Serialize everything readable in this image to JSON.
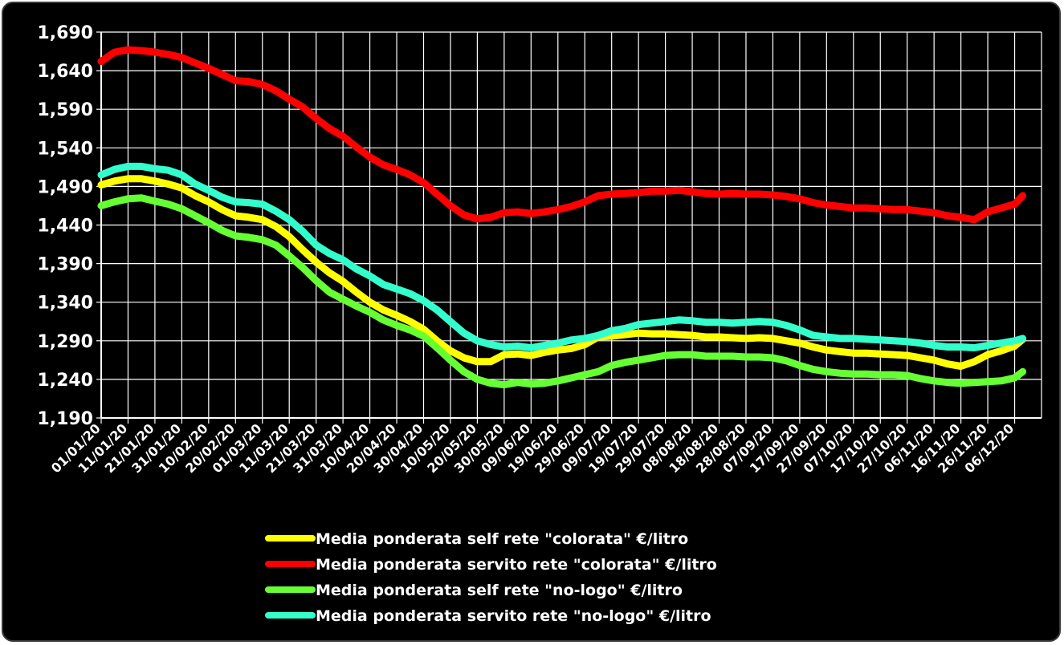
{
  "chart_data": {
    "type": "line",
    "title": "",
    "xlabel": "",
    "ylabel": "",
    "ylim": [
      1.19,
      1.69
    ],
    "yticks": [
      "1,190",
      "1,240",
      "1,290",
      "1,340",
      "1,390",
      "1,440",
      "1,490",
      "1,540",
      "1,590",
      "1,640",
      "1,690"
    ],
    "ytick_values": [
      1.19,
      1.24,
      1.29,
      1.34,
      1.39,
      1.44,
      1.49,
      1.54,
      1.59,
      1.64,
      1.69
    ],
    "xticks": [
      "01/01/20",
      "11/01/20",
      "21/01/20",
      "31/01/20",
      "10/02/20",
      "20/02/20",
      "01/03/20",
      "11/03/20",
      "21/03/20",
      "31/03/20",
      "10/04/20",
      "20/04/20",
      "30/04/20",
      "10/05/20",
      "20/05/20",
      "30/05/20",
      "09/06/20",
      "19/06/20",
      "29/06/20",
      "09/07/20",
      "19/07/20",
      "29/07/20",
      "08/08/20",
      "18/08/20",
      "28/08/20",
      "07/09/20",
      "17/09/20",
      "27/09/20",
      "07/10/20",
      "17/10/20",
      "27/10/20",
      "06/11/20",
      "16/11/20",
      "26/11/20",
      "06/12/20"
    ],
    "xlim": [
      "01/01/20",
      "16/12/20"
    ],
    "grid": true,
    "legend_position": "bottom",
    "series": [
      {
        "name": "Media ponderata self rete \"colorata\" €/litro",
        "color": "#ffff00",
        "x": [
          "01/01/20",
          "06/01/20",
          "11/01/20",
          "16/01/20",
          "21/01/20",
          "26/01/20",
          "31/01/20",
          "05/02/20",
          "10/02/20",
          "15/02/20",
          "20/02/20",
          "25/02/20",
          "01/03/20",
          "06/03/20",
          "11/03/20",
          "16/03/20",
          "21/03/20",
          "26/03/20",
          "31/03/20",
          "05/04/20",
          "10/04/20",
          "15/04/20",
          "20/04/20",
          "25/04/20",
          "30/04/20",
          "05/05/20",
          "10/05/20",
          "15/05/20",
          "20/05/20",
          "25/05/20",
          "30/05/20",
          "04/06/20",
          "09/06/20",
          "14/06/20",
          "19/06/20",
          "24/06/20",
          "29/06/20",
          "04/07/20",
          "09/07/20",
          "14/07/20",
          "19/07/20",
          "24/07/20",
          "29/07/20",
          "03/08/20",
          "08/08/20",
          "13/08/20",
          "18/08/20",
          "23/08/20",
          "28/08/20",
          "02/09/20",
          "07/09/20",
          "12/09/20",
          "17/09/20",
          "22/09/20",
          "27/09/20",
          "02/10/20",
          "07/10/20",
          "12/10/20",
          "17/10/20",
          "22/10/20",
          "27/10/20",
          "01/11/20",
          "06/11/20",
          "11/11/20",
          "16/11/20",
          "21/11/20",
          "26/11/20",
          "01/12/20",
          "06/12/20",
          "09/12/20"
        ],
        "y": [
          1.492,
          1.497,
          1.5,
          1.5,
          1.497,
          1.493,
          1.488,
          1.478,
          1.47,
          1.46,
          1.452,
          1.45,
          1.447,
          1.438,
          1.425,
          1.408,
          1.392,
          1.378,
          1.367,
          1.353,
          1.34,
          1.33,
          1.323,
          1.315,
          1.305,
          1.29,
          1.277,
          1.268,
          1.263,
          1.263,
          1.272,
          1.273,
          1.271,
          1.275,
          1.278,
          1.28,
          1.285,
          1.295,
          1.296,
          1.298,
          1.3,
          1.299,
          1.299,
          1.298,
          1.297,
          1.295,
          1.295,
          1.294,
          1.293,
          1.294,
          1.293,
          1.29,
          1.287,
          1.282,
          1.278,
          1.276,
          1.274,
          1.274,
          1.273,
          1.272,
          1.271,
          1.268,
          1.265,
          1.26,
          1.257,
          1.263,
          1.272,
          1.277,
          1.283,
          1.292
        ]
      },
      {
        "name": "Media ponderata servito rete \"colorata\" €/litro",
        "color": "#ff0000",
        "x": [
          "01/01/20",
          "06/01/20",
          "11/01/20",
          "16/01/20",
          "21/01/20",
          "26/01/20",
          "31/01/20",
          "05/02/20",
          "10/02/20",
          "15/02/20",
          "20/02/20",
          "25/02/20",
          "01/03/20",
          "06/03/20",
          "11/03/20",
          "16/03/20",
          "21/03/20",
          "26/03/20",
          "31/03/20",
          "05/04/20",
          "10/04/20",
          "15/04/20",
          "20/04/20",
          "25/04/20",
          "30/04/20",
          "05/05/20",
          "10/05/20",
          "15/05/20",
          "20/05/20",
          "25/05/20",
          "30/05/20",
          "04/06/20",
          "09/06/20",
          "14/06/20",
          "19/06/20",
          "24/06/20",
          "29/06/20",
          "04/07/20",
          "09/07/20",
          "14/07/20",
          "19/07/20",
          "24/07/20",
          "29/07/20",
          "03/08/20",
          "08/08/20",
          "13/08/20",
          "18/08/20",
          "23/08/20",
          "28/08/20",
          "02/09/20",
          "07/09/20",
          "12/09/20",
          "17/09/20",
          "22/09/20",
          "27/09/20",
          "02/10/20",
          "07/10/20",
          "12/10/20",
          "17/10/20",
          "22/10/20",
          "27/10/20",
          "01/11/20",
          "06/11/20",
          "11/11/20",
          "16/11/20",
          "21/11/20",
          "26/11/20",
          "01/12/20",
          "06/12/20",
          "09/12/20"
        ],
        "y": [
          1.652,
          1.664,
          1.667,
          1.666,
          1.664,
          1.661,
          1.657,
          1.65,
          1.643,
          1.635,
          1.627,
          1.626,
          1.622,
          1.614,
          1.603,
          1.593,
          1.578,
          1.565,
          1.555,
          1.541,
          1.528,
          1.518,
          1.512,
          1.505,
          1.495,
          1.48,
          1.465,
          1.453,
          1.448,
          1.45,
          1.456,
          1.457,
          1.455,
          1.457,
          1.46,
          1.464,
          1.47,
          1.478,
          1.48,
          1.481,
          1.482,
          1.484,
          1.484,
          1.485,
          1.483,
          1.481,
          1.48,
          1.481,
          1.48,
          1.48,
          1.479,
          1.477,
          1.474,
          1.469,
          1.466,
          1.464,
          1.462,
          1.462,
          1.461,
          1.46,
          1.46,
          1.458,
          1.456,
          1.452,
          1.45,
          1.447,
          1.457,
          1.462,
          1.467,
          1.478
        ]
      },
      {
        "name": "Media ponderata self rete \"no-logo\" €/litro",
        "color": "#66ff33",
        "x": [
          "01/01/20",
          "06/01/20",
          "11/01/20",
          "16/01/20",
          "21/01/20",
          "26/01/20",
          "31/01/20",
          "05/02/20",
          "10/02/20",
          "15/02/20",
          "20/02/20",
          "25/02/20",
          "01/03/20",
          "06/03/20",
          "11/03/20",
          "16/03/20",
          "21/03/20",
          "26/03/20",
          "31/03/20",
          "05/04/20",
          "10/04/20",
          "15/04/20",
          "20/04/20",
          "25/04/20",
          "30/04/20",
          "05/05/20",
          "10/05/20",
          "15/05/20",
          "20/05/20",
          "25/05/20",
          "30/05/20",
          "04/06/20",
          "09/06/20",
          "14/06/20",
          "19/06/20",
          "24/06/20",
          "29/06/20",
          "04/07/20",
          "09/07/20",
          "14/07/20",
          "19/07/20",
          "24/07/20",
          "29/07/20",
          "03/08/20",
          "08/08/20",
          "13/08/20",
          "18/08/20",
          "23/08/20",
          "28/08/20",
          "02/09/20",
          "07/09/20",
          "12/09/20",
          "17/09/20",
          "22/09/20",
          "27/09/20",
          "02/10/20",
          "07/10/20",
          "12/10/20",
          "17/10/20",
          "22/10/20",
          "27/10/20",
          "01/11/20",
          "06/11/20",
          "11/11/20",
          "16/11/20",
          "21/11/20",
          "26/11/20",
          "01/12/20",
          "06/12/20",
          "09/12/20"
        ],
        "y": [
          1.465,
          1.47,
          1.474,
          1.475,
          1.471,
          1.467,
          1.461,
          1.452,
          1.443,
          1.433,
          1.426,
          1.424,
          1.421,
          1.414,
          1.4,
          1.385,
          1.368,
          1.353,
          1.344,
          1.335,
          1.327,
          1.317,
          1.31,
          1.304,
          1.296,
          1.281,
          1.265,
          1.25,
          1.24,
          1.235,
          1.233,
          1.236,
          1.234,
          1.235,
          1.238,
          1.242,
          1.246,
          1.25,
          1.258,
          1.262,
          1.265,
          1.268,
          1.271,
          1.272,
          1.272,
          1.27,
          1.27,
          1.27,
          1.269,
          1.269,
          1.268,
          1.264,
          1.258,
          1.253,
          1.25,
          1.248,
          1.247,
          1.247,
          1.246,
          1.246,
          1.245,
          1.241,
          1.238,
          1.236,
          1.235,
          1.236,
          1.237,
          1.238,
          1.242,
          1.25
        ]
      },
      {
        "name": "Media ponderata servito rete \"no-logo\" €/litro",
        "color": "#33ffcc",
        "x": [
          "01/01/20",
          "06/01/20",
          "11/01/20",
          "16/01/20",
          "21/01/20",
          "26/01/20",
          "31/01/20",
          "05/02/20",
          "10/02/20",
          "15/02/20",
          "20/02/20",
          "25/02/20",
          "01/03/20",
          "06/03/20",
          "11/03/20",
          "16/03/20",
          "21/03/20",
          "26/03/20",
          "31/03/20",
          "05/04/20",
          "10/04/20",
          "15/04/20",
          "20/04/20",
          "25/04/20",
          "30/04/20",
          "05/05/20",
          "10/05/20",
          "15/05/20",
          "20/05/20",
          "25/05/20",
          "30/05/20",
          "04/06/20",
          "09/06/20",
          "14/06/20",
          "19/06/20",
          "24/06/20",
          "29/06/20",
          "04/07/20",
          "09/07/20",
          "14/07/20",
          "19/07/20",
          "24/07/20",
          "29/07/20",
          "03/08/20",
          "08/08/20",
          "13/08/20",
          "18/08/20",
          "23/08/20",
          "28/08/20",
          "02/09/20",
          "07/09/20",
          "12/09/20",
          "17/09/20",
          "22/09/20",
          "27/09/20",
          "02/10/20",
          "07/10/20",
          "12/10/20",
          "17/10/20",
          "22/10/20",
          "27/10/20",
          "01/11/20",
          "06/11/20",
          "11/11/20",
          "16/11/20",
          "21/11/20",
          "26/11/20",
          "01/12/20",
          "06/12/20",
          "09/12/20"
        ],
        "y": [
          1.505,
          1.512,
          1.516,
          1.516,
          1.513,
          1.511,
          1.505,
          1.493,
          1.485,
          1.476,
          1.47,
          1.469,
          1.467,
          1.458,
          1.447,
          1.432,
          1.414,
          1.403,
          1.395,
          1.383,
          1.374,
          1.363,
          1.357,
          1.351,
          1.342,
          1.33,
          1.315,
          1.3,
          1.29,
          1.285,
          1.282,
          1.283,
          1.281,
          1.284,
          1.287,
          1.291,
          1.293,
          1.297,
          1.303,
          1.306,
          1.311,
          1.313,
          1.315,
          1.317,
          1.316,
          1.314,
          1.314,
          1.313,
          1.314,
          1.315,
          1.314,
          1.31,
          1.304,
          1.297,
          1.295,
          1.293,
          1.293,
          1.292,
          1.291,
          1.29,
          1.289,
          1.287,
          1.284,
          1.282,
          1.282,
          1.281,
          1.284,
          1.287,
          1.29,
          1.293
        ]
      }
    ]
  }
}
